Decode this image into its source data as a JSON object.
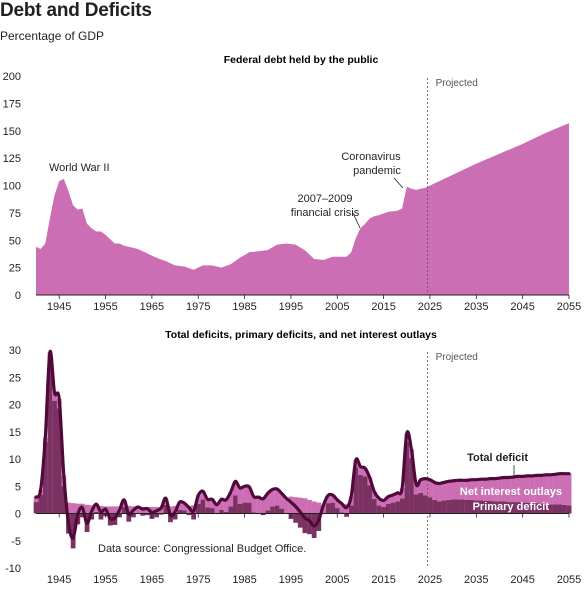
{
  "page": {
    "title": "Debt and Deficits",
    "subtitle": "Percentage of GDP",
    "source": "Data source: Congressional Budget Office."
  },
  "colors": {
    "debt_fill": "#cc6eb3",
    "interest_fill": "#cc6eb3",
    "primary_fill": "#7b3263",
    "total_line": "#4f0a3a"
  },
  "chart_data": [
    {
      "type": "area",
      "title": "Federal debt held by the public",
      "xlim": [
        1940,
        2055
      ],
      "ylim": [
        0,
        200
      ],
      "x_ticks": [
        1945,
        1955,
        1965,
        1975,
        1985,
        1995,
        2005,
        2015,
        2025,
        2035,
        2045,
        2055
      ],
      "y_ticks": [
        0,
        25,
        50,
        75,
        100,
        125,
        150,
        175,
        200
      ],
      "projected_from": 2024.5,
      "projected_label": "Projected",
      "grid": false,
      "series": [
        {
          "x": [
            1940,
            1941,
            1942,
            1943,
            1944,
            1945,
            1946,
            1947,
            1948,
            1949,
            1950,
            1951,
            1952,
            1953,
            1954,
            1955,
            1956,
            1957,
            1958,
            1959,
            1960,
            1962,
            1964,
            1966,
            1968,
            1970,
            1972,
            1974,
            1976,
            1978,
            1980,
            1982,
            1984,
            1986,
            1988,
            1990,
            1992,
            1994,
            1996,
            1998,
            2000,
            2002,
            2004,
            2006,
            2007,
            2008,
            2009,
            2010,
            2011,
            2012,
            2013,
            2014,
            2016,
            2018,
            2019,
            2020,
            2021,
            2022,
            2023,
            2024,
            2025,
            2030,
            2035,
            2040,
            2045,
            2050,
            2055
          ],
          "values": [
            44,
            42,
            47,
            70,
            91,
            104,
            106,
            95,
            82,
            78,
            79,
            65,
            61,
            58,
            58,
            55,
            51,
            47,
            47,
            45,
            44,
            42,
            38,
            34,
            31,
            27,
            26,
            23,
            27,
            27,
            25,
            28,
            34,
            39,
            40,
            41,
            46,
            47,
            46,
            41,
            33,
            32,
            35,
            35,
            35,
            39,
            52,
            61,
            65,
            70,
            72,
            73,
            76,
            77,
            79,
            99,
            97,
            96,
            97,
            98,
            100,
            110,
            120,
            129,
            138,
            148,
            157
          ]
        }
      ],
      "annotations": [
        {
          "text": "World War II",
          "x": 1945,
          "y": 106
        },
        {
          "text": "2007–2009",
          "x": 2009,
          "y": 52
        },
        {
          "text": "financial crisis",
          "x": 2009,
          "y": 52
        },
        {
          "text": "Coronavirus",
          "x": 2020,
          "y": 99
        },
        {
          "text": "pandemic",
          "x": 2020,
          "y": 99
        }
      ]
    },
    {
      "type": "area",
      "title": "Total deficits, primary deficits, and net interest outlays",
      "xlim": [
        1940,
        2055
      ],
      "ylim": [
        -10,
        30
      ],
      "x_ticks": [
        1945,
        1955,
        1965,
        1975,
        1985,
        1995,
        2005,
        2015,
        2025,
        2035,
        2045,
        2055
      ],
      "y_ticks": [
        -10,
        -5,
        0,
        5,
        10,
        15,
        20,
        25,
        30
      ],
      "projected_from": 2024.5,
      "projected_label": "Projected",
      "grid": false,
      "x": [
        1940,
        1941,
        1942,
        1943,
        1944,
        1945,
        1946,
        1947,
        1948,
        1949,
        1950,
        1951,
        1952,
        1953,
        1954,
        1955,
        1956,
        1957,
        1958,
        1959,
        1960,
        1961,
        1962,
        1963,
        1964,
        1965,
        1966,
        1967,
        1968,
        1969,
        1970,
        1971,
        1972,
        1973,
        1974,
        1975,
        1976,
        1977,
        1978,
        1979,
        1980,
        1981,
        1982,
        1983,
        1984,
        1985,
        1986,
        1987,
        1988,
        1989,
        1990,
        1991,
        1992,
        1993,
        1994,
        1995,
        1996,
        1997,
        1998,
        1999,
        2000,
        2001,
        2002,
        2003,
        2004,
        2005,
        2006,
        2007,
        2008,
        2009,
        2010,
        2011,
        2012,
        2013,
        2014,
        2015,
        2016,
        2017,
        2018,
        2019,
        2020,
        2021,
        2022,
        2023,
        2024,
        2025,
        2026,
        2027,
        2028,
        2029,
        2030,
        2031,
        2032,
        2033,
        2034,
        2035,
        2036,
        2037,
        2038,
        2039,
        2040,
        2041,
        2042,
        2043,
        2044,
        2045,
        2046,
        2047,
        2048,
        2049,
        2050,
        2051,
        2052,
        2053,
        2054,
        2055
      ],
      "series": [
        {
          "name": "Total deficit",
          "values": [
            3.0,
            4.3,
            13.9,
            29.6,
            22.2,
            21.0,
            7.0,
            -1.7,
            -4.5,
            -0.2,
            1.1,
            -1.8,
            0.4,
            1.7,
            0.3,
            0.8,
            -0.9,
            -0.8,
            0.6,
            2.5,
            -0.1,
            0.6,
            1.2,
            0.8,
            0.9,
            0.2,
            0.5,
            1.0,
            2.8,
            -0.3,
            0.3,
            2.1,
            1.9,
            1.1,
            0.4,
            3.3,
            4.1,
            2.6,
            2.6,
            1.6,
            2.6,
            2.5,
            3.9,
            5.9,
            4.7,
            5.0,
            4.9,
            3.1,
            3.0,
            2.7,
            3.7,
            4.4,
            4.5,
            3.7,
            2.8,
            2.1,
            1.3,
            0.3,
            -0.8,
            -1.3,
            -2.3,
            -1.2,
            1.5,
            3.3,
            3.4,
            2.5,
            1.8,
            1.1,
            3.1,
            9.8,
            8.6,
            8.3,
            6.6,
            4.0,
            2.8,
            2.4,
            3.1,
            3.4,
            3.8,
            4.6,
            14.7,
            11.8,
            5.4,
            6.2,
            6.4,
            6.2,
            5.7,
            5.5,
            5.7,
            5.9,
            6.0,
            6.1,
            6.1,
            6.1,
            6.2,
            6.2,
            6.3,
            6.3,
            6.4,
            6.4,
            6.5,
            6.6,
            6.6,
            6.7,
            6.8,
            6.8,
            6.9,
            6.9,
            7.0,
            7.0,
            7.1,
            7.1,
            7.2,
            7.3,
            7.3,
            7.3
          ]
        },
        {
          "name": "Net interest outlays",
          "values": [
            0.9,
            0.9,
            0.8,
            1.1,
            1.5,
            1.7,
            1.9,
            2.0,
            1.9,
            1.8,
            1.8,
            1.6,
            1.5,
            1.4,
            1.4,
            1.3,
            1.3,
            1.3,
            1.3,
            1.3,
            1.4,
            1.3,
            1.2,
            1.2,
            1.2,
            1.2,
            1.2,
            1.2,
            1.2,
            1.3,
            1.4,
            1.4,
            1.3,
            1.4,
            1.5,
            1.5,
            1.5,
            1.5,
            1.6,
            1.7,
            1.9,
            2.2,
            2.6,
            2.6,
            2.9,
            3.0,
            2.9,
            2.9,
            2.9,
            3.0,
            3.1,
            3.1,
            3.0,
            2.8,
            2.8,
            3.1,
            3.0,
            2.9,
            2.8,
            2.5,
            2.2,
            2.0,
            1.6,
            1.4,
            1.4,
            1.5,
            1.6,
            1.7,
            1.6,
            1.3,
            1.5,
            1.5,
            1.4,
            1.3,
            1.3,
            1.2,
            1.3,
            1.4,
            1.6,
            1.8,
            1.6,
            1.6,
            1.9,
            2.4,
            3.1,
            3.2,
            3.2,
            3.3,
            3.3,
            3.4,
            3.4,
            3.5,
            3.5,
            3.6,
            3.7,
            3.8,
            3.9,
            4.0,
            4.1,
            4.2,
            4.3,
            4.4,
            4.5,
            4.6,
            4.7,
            4.8,
            4.9,
            5.0,
            5.1,
            5.2,
            5.3,
            5.4,
            5.5,
            5.6,
            5.7,
            5.8
          ]
        },
        {
          "name": "Primary deficit",
          "values": [
            2.1,
            3.4,
            13.1,
            28.5,
            20.7,
            19.3,
            5.1,
            -3.7,
            -6.4,
            -2.0,
            -0.7,
            -3.4,
            -1.1,
            0.3,
            -1.1,
            -0.5,
            -2.2,
            -2.1,
            -0.7,
            1.2,
            -1.5,
            -0.7,
            0.0,
            -0.4,
            -0.3,
            -1.0,
            -0.7,
            -0.2,
            1.6,
            -1.6,
            -1.1,
            0.7,
            0.6,
            -0.3,
            -1.1,
            1.8,
            2.6,
            1.1,
            1.0,
            -0.1,
            0.7,
            0.3,
            1.3,
            3.3,
            1.8,
            2.0,
            2.0,
            0.2,
            0.1,
            -0.3,
            0.6,
            1.3,
            1.5,
            0.9,
            0.0,
            -1.0,
            -1.7,
            -2.6,
            -3.6,
            -3.8,
            -4.5,
            -3.2,
            -0.1,
            1.9,
            2.0,
            1.0,
            0.2,
            -0.6,
            1.5,
            8.5,
            7.1,
            6.8,
            5.2,
            2.7,
            1.5,
            1.2,
            1.8,
            2.0,
            2.2,
            2.8,
            13.1,
            10.2,
            3.5,
            3.8,
            3.3,
            3.0,
            2.5,
            2.2,
            2.4,
            2.5,
            2.6,
            2.6,
            2.6,
            2.5,
            2.5,
            2.4,
            2.4,
            2.3,
            2.3,
            2.2,
            2.2,
            2.2,
            2.1,
            2.1,
            2.1,
            2.0,
            2.0,
            1.9,
            1.9,
            1.8,
            1.8,
            1.7,
            1.7,
            1.7,
            1.6,
            1.5
          ]
        }
      ],
      "legend": [
        "Total deficit",
        "Net interest outlays",
        "Primary deficit"
      ],
      "source_note": "Data source: Congressional Budget Office."
    }
  ]
}
